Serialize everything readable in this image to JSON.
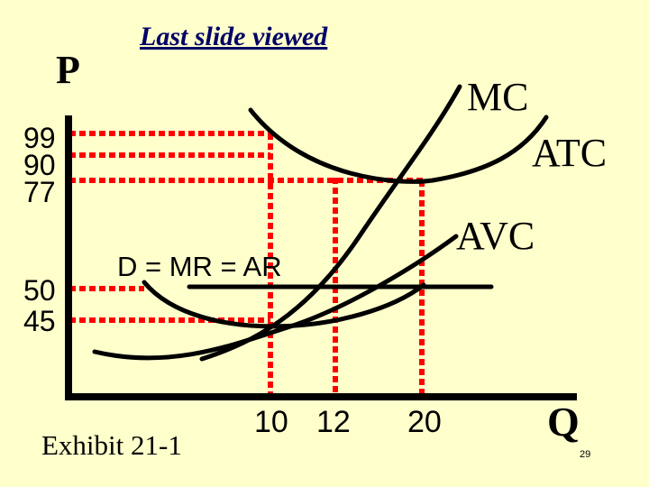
{
  "slide": {
    "nav_link": "Last slide viewed",
    "exhibit": "Exhibit 21-1",
    "slide_number": "29"
  },
  "axes": {
    "y_label": "P",
    "x_label": "Q"
  },
  "price_ticks": [
    "99",
    "90",
    "77",
    "50",
    "45"
  ],
  "quantity_ticks": [
    "10",
    "12",
    "20"
  ],
  "curves": {
    "mc": "MC",
    "atc": "ATC",
    "avc": "AVC",
    "demand": "D = MR = AR"
  },
  "colors": {
    "background": "#ffffcc",
    "guide_lines": "#ff0000",
    "curves": "#000000",
    "link": "#000066"
  }
}
